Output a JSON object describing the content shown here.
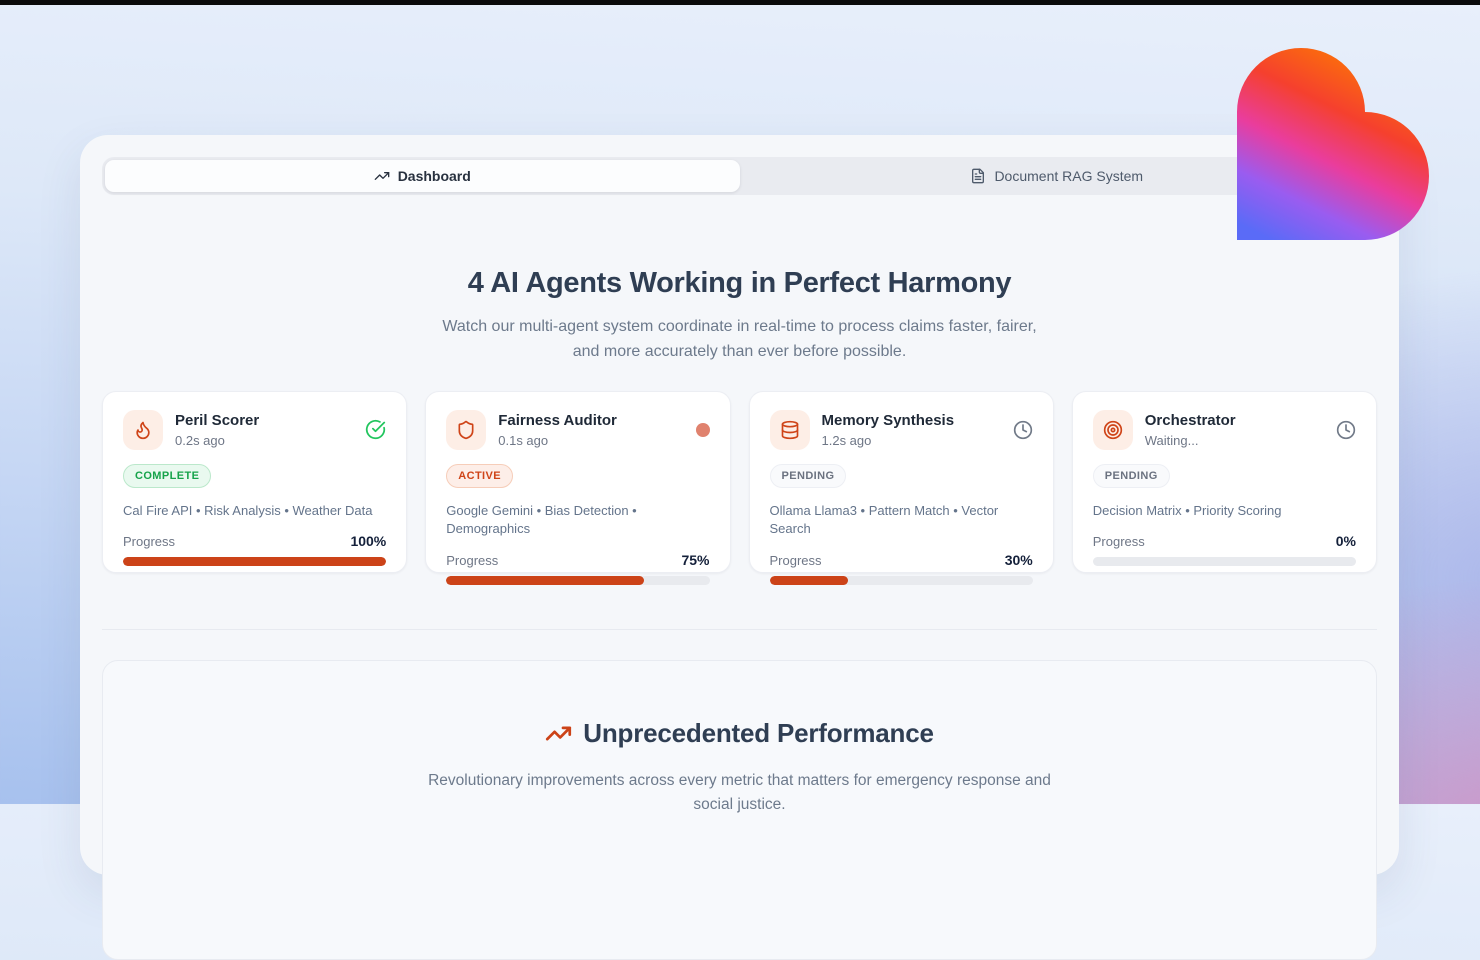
{
  "tabs": {
    "dashboard": {
      "label": "Dashboard"
    },
    "rag": {
      "label": "Document RAG System"
    }
  },
  "hero": {
    "title": "4 AI Agents Working in Perfect Harmony",
    "subtitle": "Watch our multi-agent system coordinate in real-time to process claims faster, fairer, and more accurately than ever before possible."
  },
  "agents": [
    {
      "name": "Peril Scorer",
      "last_update": "0.2s ago",
      "icon": "flame-icon",
      "status": "COMPLETE",
      "status_icon": "check-circle-icon",
      "tools": "Cal Fire API • Risk Analysis • Weather Data",
      "progress_label": "Progress",
      "progress_text": "100%",
      "progress_value": 100
    },
    {
      "name": "Fairness Auditor",
      "last_update": "0.1s ago",
      "icon": "shield-icon",
      "status": "ACTIVE",
      "status_icon": "pulse-dot-icon",
      "tools": "Google Gemini • Bias Detection • Demographics",
      "progress_label": "Progress",
      "progress_text": "75%",
      "progress_value": 75
    },
    {
      "name": "Memory Synthesis",
      "last_update": "1.2s ago",
      "icon": "database-icon",
      "status": "PENDING",
      "status_icon": "clock-icon",
      "tools": "Ollama Llama3 • Pattern Match • Vector Search",
      "progress_label": "Progress",
      "progress_text": "30%",
      "progress_value": 30
    },
    {
      "name": "Orchestrator",
      "last_update": "Waiting...",
      "icon": "target-icon",
      "status": "PENDING",
      "status_icon": "clock-icon",
      "tools": "Decision Matrix • Priority Scoring",
      "progress_label": "Progress",
      "progress_text": "0%",
      "progress_value": 0
    }
  ],
  "performance": {
    "title": "Unprecedented Performance",
    "icon": "trending-up-icon",
    "subtitle": "Revolutionary improvements across every metric that matters for emergency response and social justice."
  },
  "colors": {
    "accent_orange": "#cc4318",
    "complete_green": "#16a34a",
    "pending_gray": "#6b7280",
    "active_dot": "#e0826e",
    "panel_bg": "#f5f7fa",
    "heart_gradient": [
      "#fd7d00",
      "#f5402e",
      "#e93d9e",
      "#5a6bf7"
    ]
  }
}
